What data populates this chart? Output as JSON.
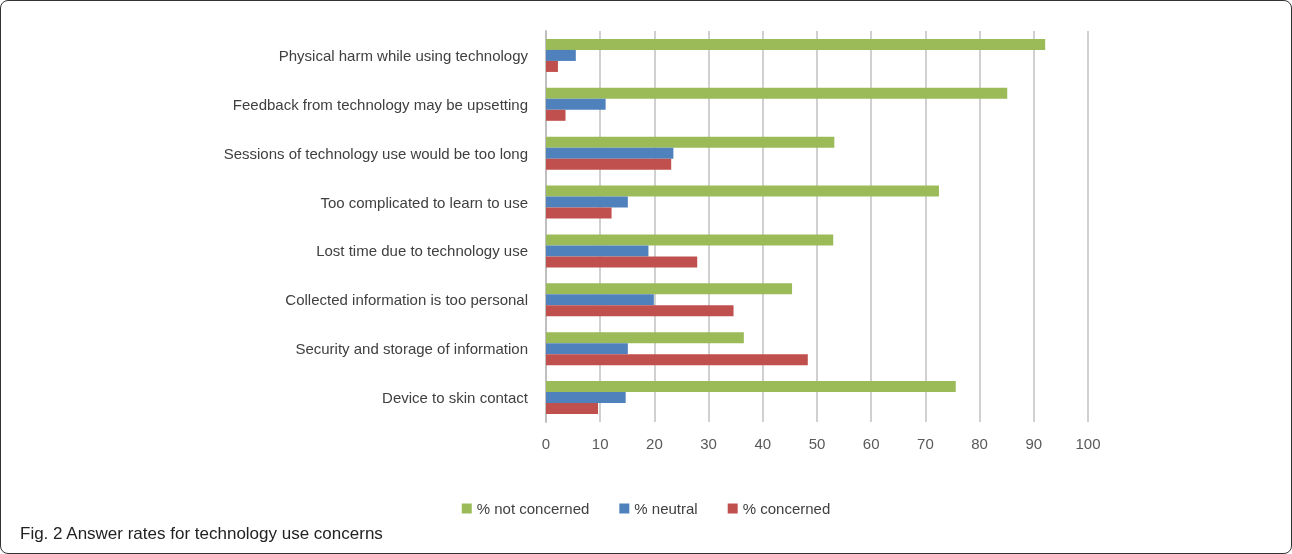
{
  "chart_data": {
    "type": "bar",
    "orientation": "horizontal",
    "title": "Fig. 2 Answer rates for technology use concerns",
    "categories": [
      "Physical harm while using technology",
      "Feedback from technology may be upsetting",
      "Sessions of technology use would be too long",
      "Too complicated to learn to use",
      "Lost time due to technology use",
      "Collected information is too personal",
      "Security and storage of information",
      "Device to skin contact"
    ],
    "series": [
      {
        "name": "% not concerned",
        "color": "#9bbb59",
        "values": [
          92.1,
          85.1,
          53.2,
          72.5,
          53.0,
          45.4,
          36.5,
          75.6
        ]
      },
      {
        "name": "% neutral",
        "color": "#4f81bd",
        "values": [
          5.5,
          11.0,
          23.5,
          15.1,
          18.9,
          19.9,
          15.1,
          14.7
        ]
      },
      {
        "name": "% concerned",
        "color": "#c0504d",
        "values": [
          2.2,
          3.6,
          23.1,
          12.1,
          27.9,
          34.6,
          48.3,
          9.6
        ]
      }
    ],
    "xlim": [
      0,
      100
    ],
    "xticks": [
      0,
      10,
      20,
      30,
      40,
      50,
      60,
      70,
      80,
      90,
      100
    ],
    "grid": "x",
    "legend": "bottom"
  }
}
